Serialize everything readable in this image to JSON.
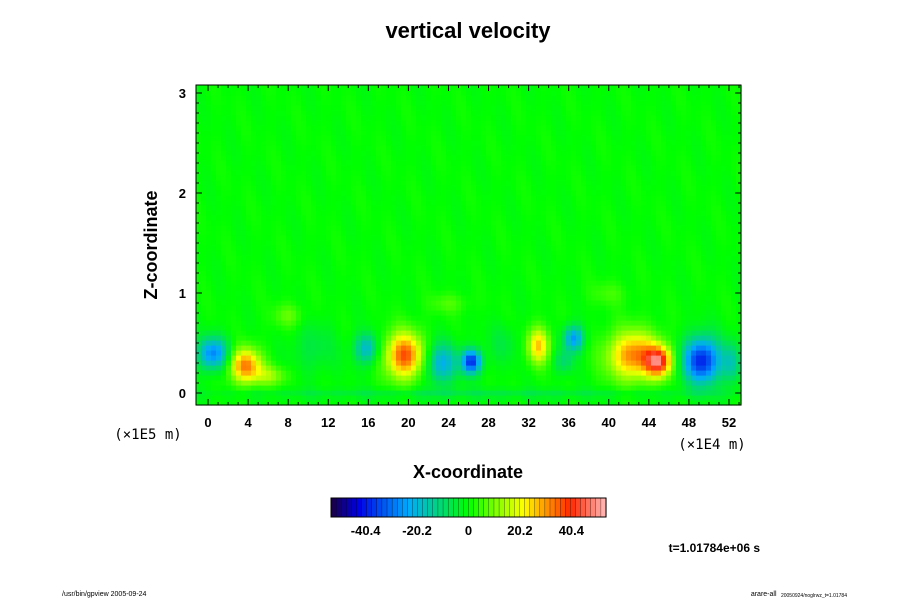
{
  "chart_data": {
    "type": "heatmap",
    "title": "vertical velocity",
    "xlabel": "X-coordinate",
    "ylabel": "Z-coordinate",
    "x_ticks": [
      "0",
      "4",
      "8",
      "12",
      "16",
      "20",
      "24",
      "28",
      "32",
      "36",
      "40",
      "44",
      "48",
      "52"
    ],
    "x_tick_values": [
      0,
      4,
      8,
      12,
      16,
      20,
      24,
      28,
      32,
      36,
      40,
      44,
      48,
      52
    ],
    "y_ticks": [
      "0",
      "1",
      "2",
      "3"
    ],
    "y_tick_values": [
      0,
      1,
      2,
      3
    ],
    "xlim": [
      -1.2,
      53.2
    ],
    "ylim": [
      -0.12,
      3.08
    ],
    "x_unit": "(×1E4 m)",
    "y_unit": "(×1E5 m)",
    "colorbar": {
      "range": [
        -54,
        54
      ],
      "tick_labels": [
        "-40.4",
        "-20.2",
        "0",
        "20.2",
        "40.4"
      ],
      "tick_values": [
        -40.4,
        -20.2,
        0,
        20.2,
        40.4
      ]
    },
    "background_value": 0,
    "cells": [
      {
        "x": 0.5,
        "z": 0.4,
        "rx": 1.6,
        "rz": 0.16,
        "v": -28
      },
      {
        "x": 3.7,
        "z": 0.28,
        "rx": 1.6,
        "rz": 0.17,
        "v": 33
      },
      {
        "x": 6.2,
        "z": 0.18,
        "rx": 1.8,
        "rz": 0.1,
        "v": 12
      },
      {
        "x": 10.5,
        "z": 0.45,
        "rx": 2.2,
        "rz": 0.25,
        "v": -6
      },
      {
        "x": 15.8,
        "z": 0.45,
        "rx": 1.2,
        "rz": 0.15,
        "v": -20
      },
      {
        "x": 19.6,
        "z": 0.38,
        "rx": 1.9,
        "rz": 0.23,
        "v": 37
      },
      {
        "x": 23.3,
        "z": 0.3,
        "rx": 1.6,
        "rz": 0.2,
        "v": -22
      },
      {
        "x": 26.3,
        "z": 0.32,
        "rx": 1.0,
        "rz": 0.12,
        "v": -38
      },
      {
        "x": 29.5,
        "z": 0.5,
        "rx": 1.5,
        "rz": 0.2,
        "v": -5
      },
      {
        "x": 33.0,
        "z": 0.48,
        "rx": 1.1,
        "rz": 0.18,
        "v": 26
      },
      {
        "x": 36.5,
        "z": 0.55,
        "rx": 1.0,
        "rz": 0.13,
        "v": -26
      },
      {
        "x": 35.5,
        "z": 0.32,
        "rx": 1.0,
        "rz": 0.12,
        "v": -10
      },
      {
        "x": 42.5,
        "z": 0.38,
        "rx": 2.6,
        "rz": 0.24,
        "v": 33
      },
      {
        "x": 45.0,
        "z": 0.32,
        "rx": 1.3,
        "rz": 0.15,
        "v": 38
      },
      {
        "x": 49.3,
        "z": 0.33,
        "rx": 1.9,
        "rz": 0.23,
        "v": -40
      },
      {
        "x": 52.3,
        "z": 0.3,
        "rx": 0.9,
        "rz": 0.2,
        "v": -14
      },
      {
        "x": 26.0,
        "z": 0.0,
        "rx": 27,
        "rz": 0.05,
        "v": -6
      },
      {
        "x": 8.0,
        "z": 0.78,
        "rx": 1.5,
        "rz": 0.12,
        "v": 8
      },
      {
        "x": 24.0,
        "z": 0.9,
        "rx": 2.0,
        "rz": 0.1,
        "v": 6
      },
      {
        "x": 40.0,
        "z": 1.0,
        "rx": 2.0,
        "rz": 0.12,
        "v": 5
      }
    ],
    "time_label": "t=1.01784e+06 s"
  },
  "footer": {
    "left": "/usr/bin/gpview 2005-09-24",
    "right_main": "arare-all",
    "right_sub": "20050924/noglrwz_t=1.01784"
  },
  "colors": {
    "background": "#00ff00",
    "axes": "#000000",
    "page": "#ffffff"
  }
}
